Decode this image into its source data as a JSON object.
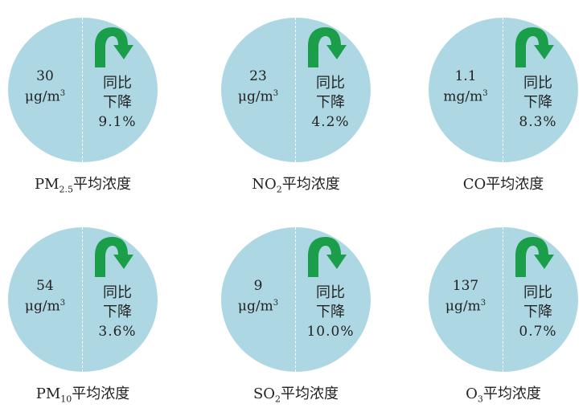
{
  "panels": [
    {
      "value": "30",
      "unit": "μg/m",
      "unit_exp": "3",
      "change_line1": "同比",
      "change_line2": "下降",
      "percent": "9.1%",
      "label_main": "PM",
      "label_sub": "2.5",
      "label_suffix": "平均浓度"
    },
    {
      "value": "23",
      "unit": "μg/m",
      "unit_exp": "3",
      "change_line1": "同比",
      "change_line2": "下降",
      "percent": "4.2%",
      "label_main": "NO",
      "label_sub": "2",
      "label_suffix": "平均浓度"
    },
    {
      "value": "1.1",
      "unit": "mg/m",
      "unit_exp": "3",
      "change_line1": "同比",
      "change_line2": "下降",
      "percent": "8.3%",
      "label_main": "CO",
      "label_sub": "",
      "label_suffix": "平均浓度"
    },
    {
      "value": "54",
      "unit": "μg/m",
      "unit_exp": "3",
      "change_line1": "同比",
      "change_line2": "下降",
      "percent": "3.6%",
      "label_main": "PM",
      "label_sub": "10",
      "label_suffix": "平均浓度"
    },
    {
      "value": "9",
      "unit": "μg/m",
      "unit_exp": "3",
      "change_line1": "同比",
      "change_line2": "下降",
      "percent": "10.0%",
      "label_main": "SO",
      "label_sub": "2",
      "label_suffix": "平均浓度"
    },
    {
      "value": "137",
      "unit": "μg/m",
      "unit_exp": "3",
      "change_line1": "同比",
      "change_line2": "下降",
      "percent": "0.7%",
      "label_main": "O",
      "label_sub": "3",
      "label_suffix": "平均浓度"
    }
  ],
  "colors": {
    "circle": "#add8e3",
    "arrow": "#1a9e4a",
    "divider": "#ffffff"
  },
  "icons": {
    "arrow": "curved-down-arrow-icon"
  }
}
